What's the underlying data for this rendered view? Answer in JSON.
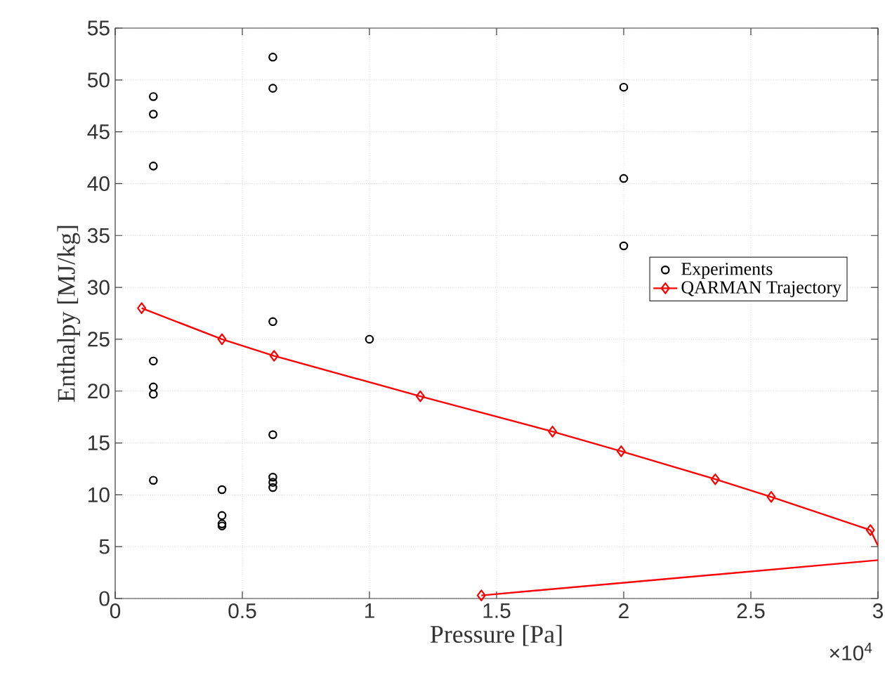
{
  "chart_data": {
    "type": "scatter",
    "xlabel": "Pressure [Pa]",
    "ylabel": "Enthalpy [MJ/kg]",
    "annotations": [
      "×10$^{4}$"
    ],
    "xlim": [
      0,
      3
    ],
    "ylim": [
      0,
      55
    ],
    "xticks": [
      0,
      0.5,
      1,
      1.5,
      2,
      2.5,
      3
    ],
    "yticks": [
      0,
      5,
      10,
      15,
      20,
      25,
      30,
      35,
      40,
      45,
      50,
      55
    ],
    "grid": true,
    "legend": "right",
    "series": [
      {
        "name": "Experiments",
        "marker": "circle",
        "color": "#000000",
        "x": [
          0.15,
          0.15,
          0.15,
          0.15,
          0.15,
          0.15,
          0.15,
          0.42,
          0.42,
          0.42,
          0.42,
          0.62,
          0.62,
          0.62,
          0.62,
          0.62,
          0.62,
          0.62,
          1.0,
          2.0,
          2.0,
          2.0
        ],
        "values": [
          48.4,
          46.7,
          41.7,
          22.9,
          20.4,
          19.7,
          11.4,
          10.5,
          8.0,
          7.2,
          7.0,
          52.2,
          49.2,
          26.7,
          15.8,
          11.7,
          11.2,
          10.7,
          25.0,
          49.3,
          40.5,
          34.0
        ]
      },
      {
        "name": "QARMAN Trajectory",
        "type": "line",
        "marker": "diamond",
        "color": "#ff0000",
        "x": [
          0.104,
          0.42,
          0.625,
          1.2,
          1.72,
          1.99,
          2.36,
          2.58,
          2.97,
          null,
          1.44
        ],
        "values": [
          28.0,
          25.0,
          23.4,
          19.5,
          16.1,
          14.2,
          11.5,
          9.8,
          6.6,
          null,
          0.3
        ]
      },
      {
        "type": "line",
        "marker": "none",
        "color": "#ff0000",
        "x": [
          2.97,
          3.0
        ],
        "values": [
          6.6,
          5.1
        ]
      },
      {
        "type": "line",
        "marker": "none",
        "color": "#ff0000",
        "x": [
          3.0,
          1.44
        ],
        "values": [
          3.7,
          0.3
        ]
      }
    ]
  }
}
